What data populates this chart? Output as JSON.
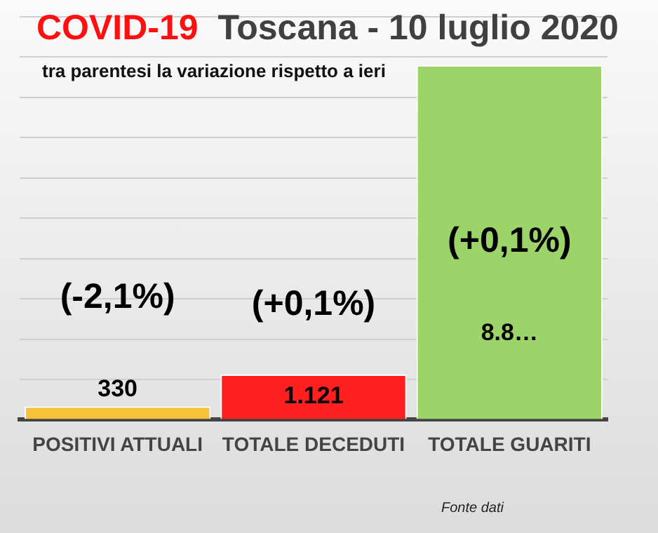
{
  "chart_data": {
    "type": "bar",
    "title": "COVID-19  Toscana - 10 luglio 2020",
    "subtitle": "tra parentesi la variazione rispetto a ieri",
    "categories": [
      "POSITIVI ATTUALI",
      "TOTALE DECEDUTI",
      "TOTALE GUARITI"
    ],
    "values": [
      330,
      1121,
      8800
    ],
    "colors": [
      "#f7c33c",
      "#fe1f1f",
      "#9dd46a"
    ],
    "value_labels": [
      "330",
      "1.121",
      "8.8…"
    ],
    "ylim": [
      0,
      10000
    ],
    "yticks": [
      {
        "value": 0,
        "label": null
      },
      {
        "value": 1000,
        "label": null
      },
      {
        "value": 2000,
        "label": null
      },
      {
        "value": 3000,
        "label": null
      },
      {
        "value": 4000,
        "label": null
      },
      {
        "value": 5000,
        "label": null
      },
      {
        "value": 6000,
        "label": null
      },
      {
        "value": 7000,
        "label": null
      },
      {
        "value": 8000,
        "label": null
      },
      {
        "value": 9000,
        "label": null
      },
      {
        "value": 10000,
        "label": null
      }
    ],
    "tick_labels": "x",
    "grid": "y",
    "legend": false,
    "annotations": [
      "(-2,1%)",
      "(+0,1%)",
      "(+0,1%)",
      "Fonte dati"
    ]
  }
}
